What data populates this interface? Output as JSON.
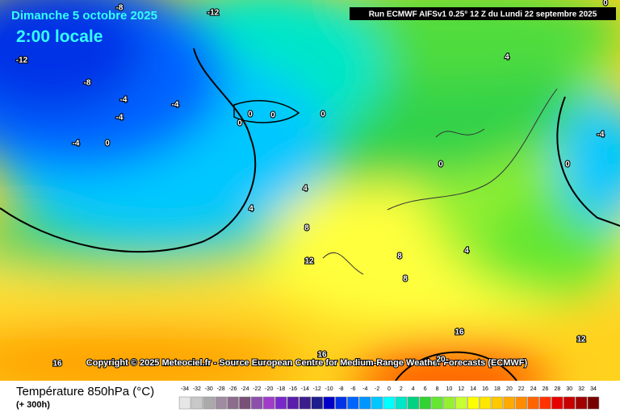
{
  "header": {
    "date": "Dimanche 5 octobre 2025",
    "time": "2:00 locale",
    "run": "Run ECMWF AIFSv1 0.25° 12 Z du Lundi 22 septembre 2025"
  },
  "copyright": "Copyright © 2025 Meteociel.fr - Source European Centre for Medium-Range Weather Forecasts (ECMWF)",
  "contour_labels": [
    -8,
    -12,
    -12,
    -8,
    -4,
    -4,
    -4,
    -4,
    0,
    0,
    0,
    0,
    0,
    4,
    -4,
    0,
    0,
    4,
    4,
    8,
    12,
    4,
    8,
    8,
    16,
    12,
    16,
    16,
    20,
    0
  ],
  "legend": {
    "title": "Température 850hPa (°C)",
    "subtitle": "(+ 300h)",
    "scale": [
      {
        "value": -34,
        "color": "#e6e6e6"
      },
      {
        "value": -32,
        "color": "#c8c8c8"
      },
      {
        "value": -30,
        "color": "#aaaaaa"
      },
      {
        "value": -28,
        "color": "#a08ca0"
      },
      {
        "value": -26,
        "color": "#8c6e8c"
      },
      {
        "value": -24,
        "color": "#785078"
      },
      {
        "value": -22,
        "color": "#8c50aa"
      },
      {
        "value": -20,
        "color": "#a03cc8"
      },
      {
        "value": -18,
        "color": "#7828c8"
      },
      {
        "value": -16,
        "color": "#5a1eaa"
      },
      {
        "value": -14,
        "color": "#3c1e8c"
      },
      {
        "value": -12,
        "color": "#1e1e8c"
      },
      {
        "value": -10,
        "color": "#0000c8"
      },
      {
        "value": -8,
        "color": "#0032e6"
      },
      {
        "value": -6,
        "color": "#0064ff"
      },
      {
        "value": -4,
        "color": "#0096ff"
      },
      {
        "value": -2,
        "color": "#00c8ff"
      },
      {
        "value": 0,
        "color": "#00ffff"
      },
      {
        "value": 2,
        "color": "#00e6c8"
      },
      {
        "value": 4,
        "color": "#00d282"
      },
      {
        "value": 6,
        "color": "#32d232"
      },
      {
        "value": 8,
        "color": "#64e632"
      },
      {
        "value": 10,
        "color": "#96f032"
      },
      {
        "value": 12,
        "color": "#c8ff32"
      },
      {
        "value": 14,
        "color": "#ffff00"
      },
      {
        "value": 16,
        "color": "#ffe600"
      },
      {
        "value": 18,
        "color": "#ffc800"
      },
      {
        "value": 20,
        "color": "#ffaa00"
      },
      {
        "value": 22,
        "color": "#ff8c00"
      },
      {
        "value": 24,
        "color": "#ff6400"
      },
      {
        "value": 26,
        "color": "#ff3200"
      },
      {
        "value": 28,
        "color": "#e60000"
      },
      {
        "value": 30,
        "color": "#c80000"
      },
      {
        "value": 32,
        "color": "#a00000"
      },
      {
        "value": 34,
        "color": "#780000"
      }
    ]
  }
}
